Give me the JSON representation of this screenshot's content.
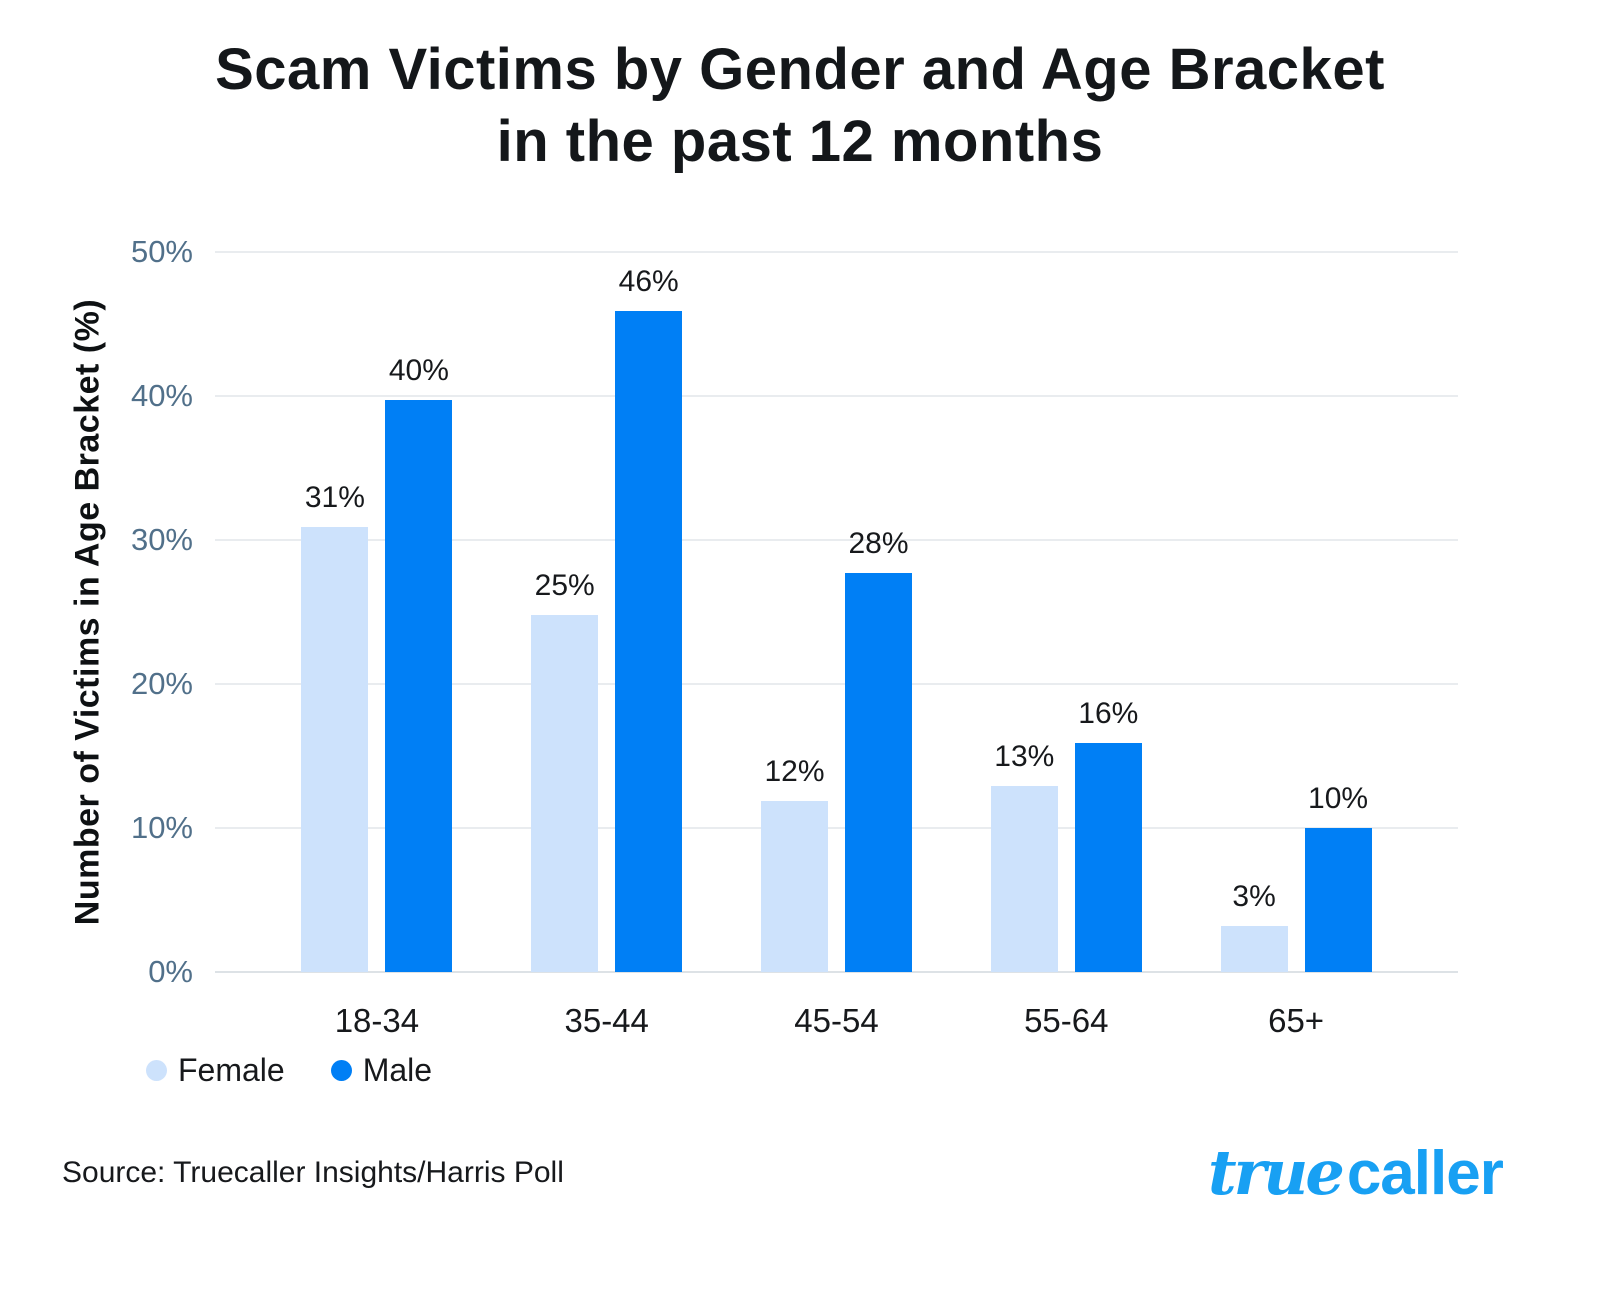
{
  "title": {
    "line1": "Scam Victims by Gender and Age Bracket",
    "line2": "in the past 12 months"
  },
  "chart_data": {
    "type": "bar",
    "title": "Scam Victims by Gender and Age Bracket in the past 12 months",
    "categories": [
      "18-34",
      "35-44",
      "45-54",
      "55-64",
      "65+"
    ],
    "series": [
      {
        "name": "Female",
        "color": "#cde2fc",
        "values": [
          31,
          25,
          12,
          13,
          3
        ],
        "value_labels": [
          "31%",
          "25%",
          "12%",
          "13%",
          "3%"
        ],
        "plotted_values": [
          30.9,
          24.8,
          11.9,
          12.9,
          3.2
        ]
      },
      {
        "name": "Male",
        "color": "#007ff5",
        "values": [
          40,
          46,
          28,
          16,
          10
        ],
        "value_labels": [
          "40%",
          "46%",
          "28%",
          "16%",
          "10%"
        ],
        "plotted_values": [
          39.7,
          45.9,
          27.7,
          15.9,
          10.0
        ]
      }
    ],
    "xlabel": "",
    "ylabel": "Number of Victims in Age Bracket (%)",
    "ylim": [
      0,
      50
    ],
    "yticks": [
      {
        "value": 0,
        "label": "0%"
      },
      {
        "value": 10,
        "label": "10%"
      },
      {
        "value": 20,
        "label": "20%"
      },
      {
        "value": 30,
        "label": "30%"
      },
      {
        "value": 40,
        "label": "40%"
      },
      {
        "value": 50,
        "label": "50%"
      }
    ],
    "grid": true,
    "legend_position": "bottom-left"
  },
  "legend": {
    "items": [
      {
        "label": "Female",
        "color": "#cde2fc"
      },
      {
        "label": "Male",
        "color": "#007ff5"
      }
    ]
  },
  "source": {
    "text": "Source: Truecaller Insights/Harris Poll"
  },
  "logo": {
    "part1": "true",
    "part2": "caller",
    "color": "#18a0f3"
  },
  "colors": {
    "male": "#007ff5",
    "female": "#cde2fc",
    "tick_label": "#51708a",
    "grid_line": "#e9ecef",
    "baseline": "#dde2e6",
    "text_dark": "#15181b",
    "background": "#ffffff"
  }
}
